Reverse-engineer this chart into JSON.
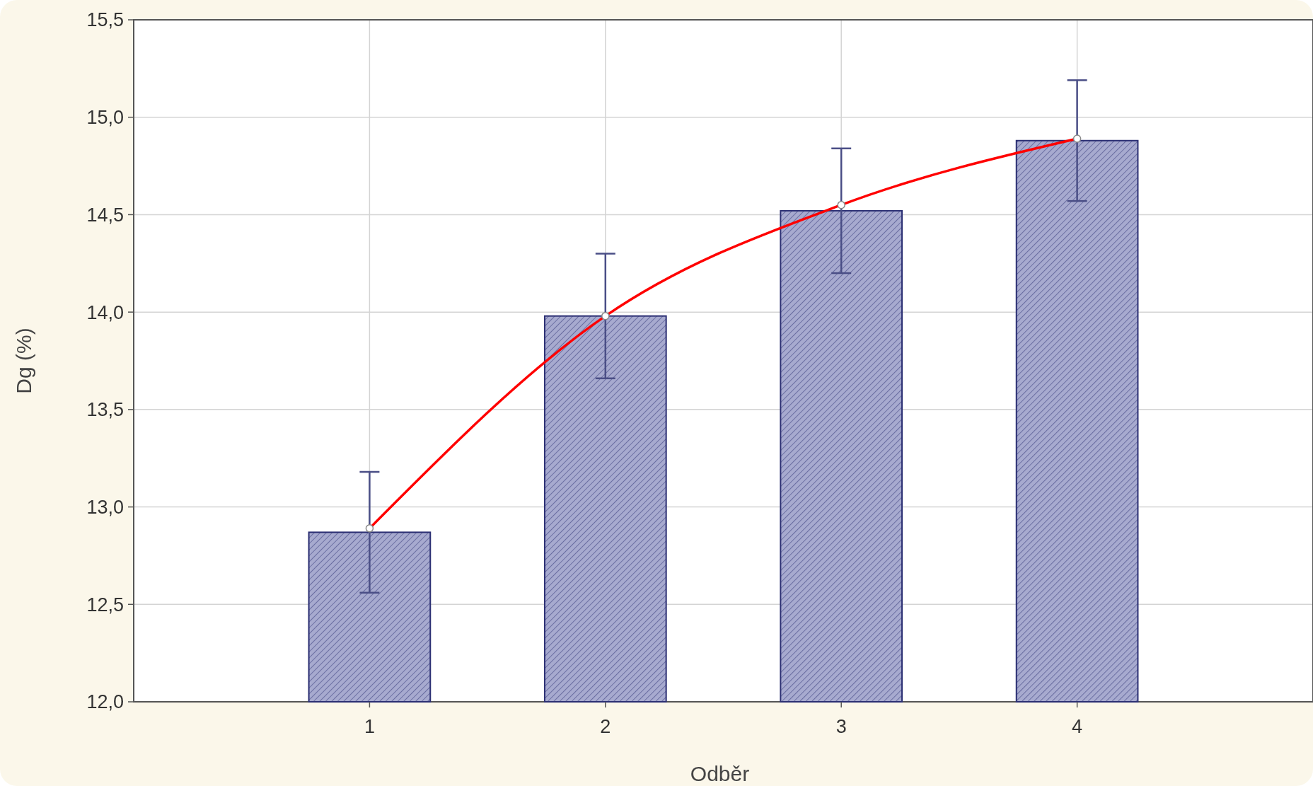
{
  "chart_data": {
    "type": "bar",
    "xlabel": "Odběr",
    "ylabel": "Dg (%)",
    "categories": [
      "1",
      "2",
      "3",
      "4"
    ],
    "series": [
      {
        "color": "#a7aacf",
        "values": [
          12.87,
          13.98,
          14.52,
          14.88
        ],
        "errors": [
          0.31,
          0.32,
          0.32,
          0.31
        ]
      },
      {
        "type": "line",
        "color": "#ff0000",
        "x": [
          "1",
          "2",
          "3",
          "4"
        ],
        "values": [
          12.89,
          13.98,
          14.55,
          14.89
        ],
        "marker": "circle"
      }
    ],
    "ylim": [
      12,
      15.5
    ],
    "yticks": [
      {
        "value": 12,
        "label": "12,0"
      },
      {
        "value": 12.5,
        "label": "12,5"
      },
      {
        "value": 13,
        "label": "13,0"
      },
      {
        "value": 13.5,
        "label": "13,5"
      },
      {
        "value": 14,
        "label": "14,0"
      },
      {
        "value": 14.5,
        "label": "14,5"
      },
      {
        "value": 15,
        "label": "15,0"
      },
      {
        "value": 15.5,
        "label": "15,5"
      }
    ],
    "grid": true
  }
}
